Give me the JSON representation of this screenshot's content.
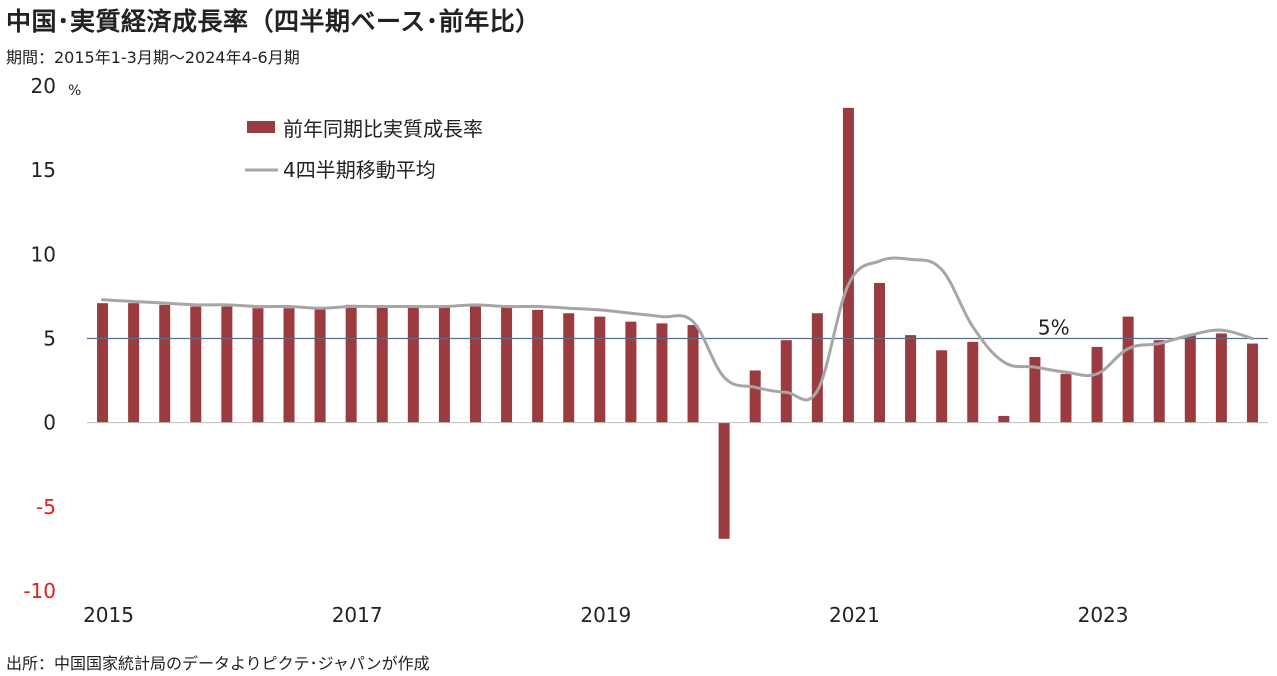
{
  "title": "中国･実質経済成長率（四半期ベース･前年比）",
  "period": "期間：2015年1-3月期～2024年4-6月期",
  "source": "出所：中国国家統計局のデータよりピクテ･ジャパンが作成",
  "colors": {
    "bar": "#9b3b40",
    "line": "#a6a6a6",
    "ref": "#5a6e8c",
    "negative_tick": "#e02020"
  },
  "chart_data": {
    "type": "bar",
    "unit": "%",
    "ylim": [
      -10,
      20
    ],
    "yticks": [
      20,
      15,
      10,
      5,
      0,
      -5,
      -10
    ],
    "xlabels": [
      "2015",
      "2017",
      "2019",
      "2021",
      "2023"
    ],
    "x": [
      "2015Q1",
      "2015Q2",
      "2015Q3",
      "2015Q4",
      "2016Q1",
      "2016Q2",
      "2016Q3",
      "2016Q4",
      "2017Q1",
      "2017Q2",
      "2017Q3",
      "2017Q4",
      "2018Q1",
      "2018Q2",
      "2018Q3",
      "2018Q4",
      "2019Q1",
      "2019Q2",
      "2019Q3",
      "2019Q4",
      "2020Q1",
      "2020Q2",
      "2020Q3",
      "2020Q4",
      "2021Q1",
      "2021Q2",
      "2021Q3",
      "2021Q4",
      "2022Q1",
      "2022Q2",
      "2022Q3",
      "2022Q4",
      "2023Q1",
      "2023Q2",
      "2023Q3",
      "2023Q4",
      "2024Q1",
      "2024Q2"
    ],
    "series": [
      {
        "name": "前年同期比実質成長率",
        "type": "bar",
        "values": [
          7.1,
          7.1,
          7.0,
          6.9,
          6.9,
          6.8,
          6.8,
          6.8,
          7.0,
          6.9,
          6.9,
          6.9,
          6.9,
          6.9,
          6.7,
          6.5,
          6.3,
          6.0,
          5.9,
          5.8,
          -6.9,
          3.1,
          4.9,
          6.5,
          18.7,
          8.3,
          5.2,
          4.3,
          4.8,
          0.4,
          3.9,
          2.9,
          4.5,
          6.3,
          4.9,
          5.2,
          5.3,
          4.7
        ]
      },
      {
        "name": "4四半期移動平均",
        "type": "line",
        "values": [
          7.3,
          7.2,
          7.1,
          7.0,
          7.0,
          6.9,
          6.9,
          6.8,
          6.9,
          6.9,
          6.9,
          6.9,
          7.0,
          6.9,
          6.9,
          6.8,
          6.7,
          6.5,
          6.3,
          6.0,
          2.7,
          2.1,
          1.8,
          1.9,
          8.2,
          9.6,
          9.7,
          9.1,
          5.7,
          3.6,
          3.3,
          3.0,
          2.9,
          4.4,
          4.7,
          5.2,
          5.5,
          5.0
        ]
      }
    ],
    "reference_line": {
      "value": 5,
      "label": "5%"
    }
  }
}
